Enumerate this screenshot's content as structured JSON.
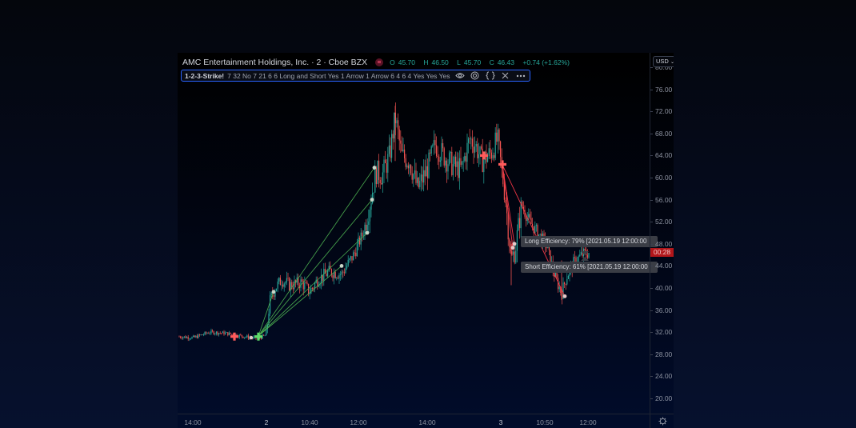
{
  "header": {
    "symbol_title": "AMC Entertainment Holdings, Inc. · 2 · Cboe BZX",
    "ohlc": {
      "open_label": "O",
      "open": "45.70",
      "high_label": "H",
      "high": "46.50",
      "low_label": "L",
      "low": "45.70",
      "close_label": "C",
      "close": "46.43",
      "change": "+0.74 (+1.62%)"
    }
  },
  "indicator": {
    "name": "1-2-3-Strike!",
    "params": "7 32 No 7 21 6 6 Long and Short Yes 1 Arrow 1 Arrow 6 4 6 4 Yes Yes Yes",
    "icons": [
      "eye-icon",
      "settings-icon",
      "source-code-icon",
      "close-icon",
      "more-icon"
    ]
  },
  "price_axis": {
    "currency": "USD",
    "ticks": [
      "80.00",
      "76.00",
      "72.00",
      "68.00",
      "64.00",
      "60.00",
      "56.00",
      "52.00",
      "48.00",
      "44.00",
      "40.00",
      "36.00",
      "32.00",
      "28.00",
      "24.00",
      "20.00"
    ],
    "current_price_tag": "00:28",
    "current_price_color": "#b2161a"
  },
  "time_axis": {
    "ticks": [
      {
        "label": "14:00",
        "bold": false
      },
      {
        "label": "2",
        "bold": true
      },
      {
        "label": "10:40",
        "bold": false
      },
      {
        "label": "12:00",
        "bold": false
      },
      {
        "label": "14:00",
        "bold": false
      },
      {
        "label": "3",
        "bold": true
      },
      {
        "label": "10:50",
        "bold": false
      },
      {
        "label": "12:00",
        "bold": false
      }
    ]
  },
  "annotations": {
    "long_efficiency": "Long Efficiency: 79% [2021.05.19 12:00:00",
    "short_efficiency": "Short Efficiency: 61% [2021.05.19 12:00:00"
  },
  "colors": {
    "up": "#26a69a",
    "down": "#ef5350",
    "long_line": "#4caf50",
    "short_line": "#f23645",
    "signal_cross_short": "#ff5b5b",
    "signal_cross_long": "#5fdc6a",
    "target_dot": "#c8d6c8"
  },
  "chart_data": {
    "type": "candlestick",
    "title": "AMC Entertainment Holdings, Inc. · 2 · Cboe BZX",
    "interval": "2 minutes",
    "indicator": "1-2-3-Strike!",
    "ylabel": "USD",
    "ylim": [
      18,
      81
    ],
    "y_ticks": [
      80,
      76,
      72,
      68,
      64,
      60,
      56,
      52,
      48,
      44,
      40,
      36,
      32,
      28,
      24,
      20
    ],
    "x_ticks": [
      "14:00",
      "2",
      "10:40",
      "12:00",
      "14:00",
      "3",
      "10:50",
      "12:00"
    ],
    "last_bar": {
      "open": 45.7,
      "high": 46.5,
      "low": 45.7,
      "close": 46.43,
      "change": 0.74,
      "change_pct": 1.62
    },
    "price_path_approx": [
      {
        "x": "day1 14:00",
        "price": 31.2
      },
      {
        "x": "day1 ~15:30",
        "price": 31.0
      },
      {
        "x": "day2 open",
        "price": 31.5
      },
      {
        "x": "day2 ~10:10",
        "price": 40.5
      },
      {
        "x": "day2 10:40",
        "price": 39.5
      },
      {
        "x": "day2 ~11:40",
        "price": 44.0
      },
      {
        "x": "day2 12:00",
        "price": 50.0
      },
      {
        "x": "day2 ~12:20",
        "price": 62.0
      },
      {
        "x": "day2 ~12:50",
        "price": 72.5
      },
      {
        "x": "day2 14:00",
        "price": 61.0
      },
      {
        "x": "day2 ~15:00",
        "price": 68.0
      },
      {
        "x": "day2 close",
        "price": 66.0
      },
      {
        "x": "day3 open",
        "price": 62.5
      },
      {
        "x": "day3 ~10:20",
        "price": 47.0
      },
      {
        "x": "day3 10:50",
        "price": 50.0
      },
      {
        "x": "day3 ~11:30",
        "price": 38.5
      },
      {
        "x": "day3 12:00",
        "price": 46.4
      }
    ],
    "signals": [
      {
        "type": "short_entry",
        "marker": "red-cross",
        "x": "day1 ~15:30",
        "price": 31.0
      },
      {
        "type": "long_entry",
        "marker": "green-cross",
        "x": "day2 open",
        "price": 31.2
      },
      {
        "type": "short_entry",
        "marker": "red-cross",
        "x": "day2 ~15:20",
        "price": 64.0
      },
      {
        "type": "short_entry",
        "marker": "red-cross",
        "x": "day3 open",
        "price": 62.4
      }
    ],
    "long_targets": [
      39.0,
      44.0,
      50.0,
      56.0,
      62.0
    ],
    "short_targets": [
      47.5,
      48.0,
      38.5
    ],
    "annotations": [
      "Long Efficiency: 79% [2021.05.19 12:00:00",
      "Short Efficiency: 61% [2021.05.19 12:00:00"
    ]
  }
}
